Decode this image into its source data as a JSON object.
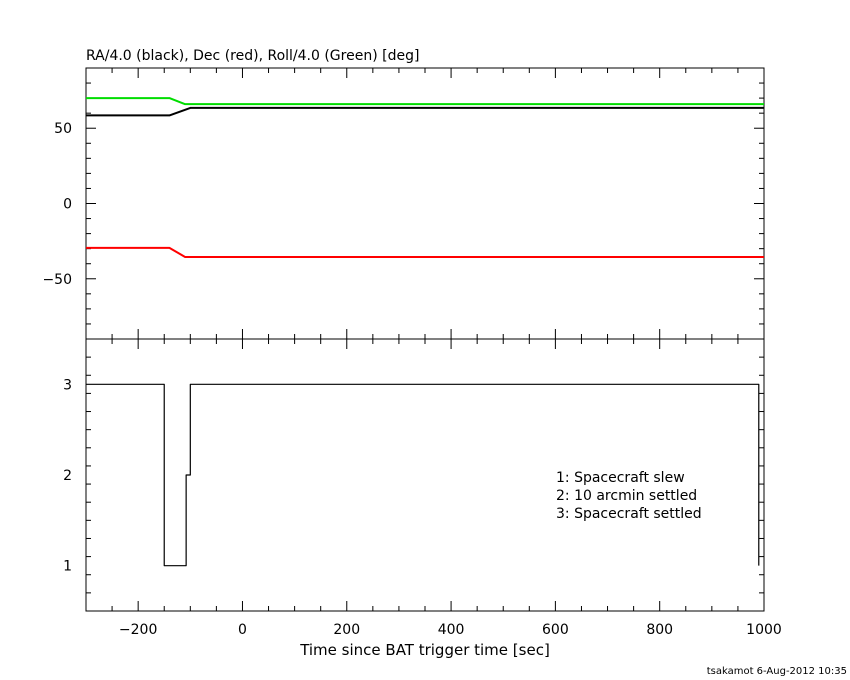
{
  "footer": {
    "credit": "tsakamot  6-Aug-2012 10:35"
  },
  "colors": {
    "ra": "#000000",
    "dec": "#ff0000",
    "roll": "#00dd00",
    "axes": "#000000"
  },
  "chart_data": [
    {
      "type": "line",
      "title": "RA/4.0 (black), Dec (red), Roll/4.0 (Green) [deg]",
      "xlim": [
        -300,
        1000
      ],
      "ylim": [
        -90,
        90
      ],
      "yticks": [
        -50,
        0,
        50
      ],
      "ytick_labels": [
        "−50",
        "0",
        "50"
      ],
      "series": [
        {
          "color": "#000000",
          "x": [
            -300,
            -140,
            -100,
            365,
            1000
          ],
          "y": [
            58.5,
            58.5,
            63.5,
            63.5,
            63.5
          ]
        },
        {
          "color": "#ff0000",
          "x": [
            -300,
            -140,
            -110,
            365,
            1000
          ],
          "y": [
            -29.5,
            -29.5,
            -35.5,
            -35.5,
            -35.5
          ]
        },
        {
          "color": "#00dd00",
          "x": [
            -300,
            -140,
            -110,
            365,
            1000
          ],
          "y": [
            70,
            70,
            66,
            66,
            66
          ]
        }
      ]
    },
    {
      "type": "line",
      "title": "",
      "xlabel": "Time since BAT trigger time [sec]",
      "xlim": [
        -300,
        1000
      ],
      "ylim": [
        0.5,
        3.5
      ],
      "xticks": [
        -200,
        0,
        200,
        400,
        600,
        800,
        1000
      ],
      "xtick_labels": [
        "−200",
        "0",
        "200",
        "400",
        "600",
        "800",
        "1000"
      ],
      "yticks": [
        1,
        2,
        3
      ],
      "ytick_labels": [
        "1",
        "2",
        "3"
      ],
      "annotations": [
        "1: Spacecraft slew",
        "2: 10 arcmin settled",
        "3: Spacecraft settled"
      ],
      "series": [
        {
          "color": "#000000",
          "x": [
            -300,
            -150,
            -150,
            -108,
            -108,
            -100,
            -100,
            990,
            990
          ],
          "y": [
            3,
            3,
            1,
            1,
            2,
            2,
            3,
            3,
            1
          ]
        }
      ]
    }
  ]
}
